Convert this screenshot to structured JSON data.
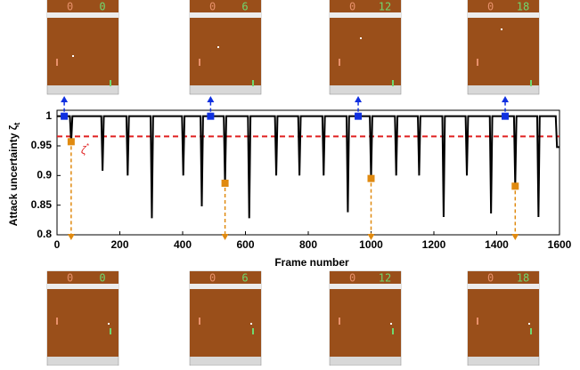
{
  "chart_data": {
    "type": "line",
    "xlabel": "Frame number",
    "ylabel": "Attack uncertainty ζ",
    "ylabel_sub": "t",
    "threshold": 0.966,
    "threshold_color": "#e02020",
    "threshold_label": "ζ",
    "threshold_label_sup": "*",
    "xlim": [
      0,
      1600
    ],
    "xticks": [
      0,
      200,
      400,
      600,
      800,
      1000,
      1200,
      1400,
      1600
    ],
    "ylim": [
      0.8,
      1.01
    ],
    "yticks": [
      0.8,
      0.85,
      0.9,
      0.95,
      1
    ],
    "series": [
      {
        "color": "#000000",
        "x": [
          0,
          41,
          45,
          49,
          141,
          145,
          149,
          221,
          225,
          229,
          298,
          302,
          306,
          398,
          402,
          406,
          457,
          461,
          465,
          531,
          535,
          539,
          608,
          612,
          616,
          694,
          698,
          702,
          768,
          772,
          776,
          845,
          849,
          853,
          922,
          926,
          930,
          996,
          1000,
          1004,
          1076,
          1080,
          1084,
          1149,
          1153,
          1157,
          1227,
          1231,
          1235,
          1301,
          1305,
          1309,
          1378,
          1382,
          1386,
          1455,
          1459,
          1463,
          1529,
          1533,
          1537,
          1588,
          1592,
          1596,
          1600
        ],
        "values": [
          1,
          1,
          0.955,
          1,
          1,
          0.908,
          1,
          1,
          0.9,
          1,
          1,
          0.828,
          1,
          1,
          0.9,
          1,
          1,
          0.848,
          1,
          1,
          0.885,
          1,
          1,
          0.828,
          1,
          1,
          0.9,
          1,
          1,
          0.9,
          1,
          1,
          0.9,
          1,
          1,
          0.838,
          1,
          1,
          0.895,
          1,
          1,
          0.9,
          1,
          1,
          0.9,
          1,
          1,
          0.83,
          1,
          1,
          0.9,
          1,
          1,
          0.836,
          1,
          1,
          0.882,
          1,
          1,
          0.83,
          1,
          1,
          0.948,
          0.948,
          0.948
        ]
      }
    ],
    "blue_points": {
      "color": "#1030e0",
      "x": [
        23,
        489,
        959,
        1427
      ],
      "values": [
        1,
        1,
        1,
        1
      ]
    },
    "orange_points": {
      "color": "#e08a10",
      "x": [
        45,
        535,
        1000,
        1459
      ],
      "values": [
        0.957,
        0.887,
        0.895,
        0.882
      ]
    },
    "top_frames": [
      {
        "left": "0",
        "right": "0"
      },
      {
        "left": "0",
        "right": "6"
      },
      {
        "left": "0",
        "right": "12"
      },
      {
        "left": "0",
        "right": "18"
      }
    ],
    "bottom_frames": [
      {
        "left": "0",
        "right": "0"
      },
      {
        "left": "0",
        "right": "6"
      },
      {
        "left": "0",
        "right": "12"
      },
      {
        "left": "0",
        "right": "18"
      }
    ]
  }
}
